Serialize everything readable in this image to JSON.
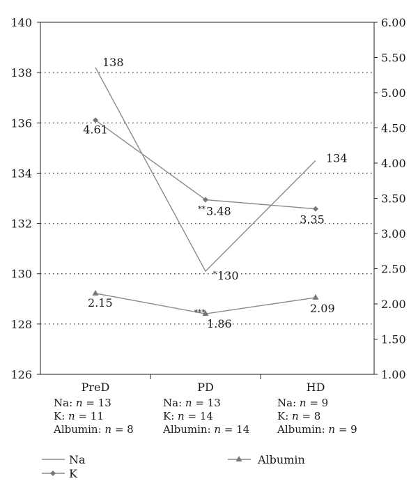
{
  "chart_data": {
    "type": "line",
    "categories": [
      "PreD",
      "PD",
      "HD"
    ],
    "left_axis": {
      "ylim": [
        126,
        140
      ],
      "ticks": [
        "126",
        "128",
        "130",
        "132",
        "134",
        "136",
        "138",
        "140"
      ]
    },
    "right_axis": {
      "ylim": [
        1.0,
        6.0
      ],
      "ticks": [
        "1.00",
        "1.50",
        "2.00",
        "2.50",
        "3.00",
        "3.50",
        "4.00",
        "4.50",
        "5.00",
        "5.50",
        "6.00"
      ]
    },
    "grid": "dotted horizontal at 128–138",
    "series": [
      {
        "name": "Na",
        "axis": "left",
        "marker": "none",
        "values": [
          138.2,
          130.1,
          134.5
        ],
        "labels": [
          "138",
          "130",
          "134"
        ],
        "stars": [
          "",
          "*",
          ""
        ]
      },
      {
        "name": "K",
        "axis": "right",
        "marker": "diamond",
        "values": [
          4.61,
          3.48,
          3.35
        ],
        "labels": [
          "4.61",
          "3.48",
          "3.35"
        ],
        "stars": [
          "",
          "**",
          ""
        ]
      },
      {
        "name": "Albumin",
        "axis": "right",
        "marker": "triangle",
        "values": [
          2.15,
          1.86,
          2.09
        ],
        "labels": [
          "2.15",
          "1.86",
          "2.09"
        ],
        "stars": [
          "",
          "***",
          ""
        ]
      }
    ],
    "sample_sizes": [
      [
        "Na: n = 13",
        "K: n = 11",
        "Albumin: n = 8"
      ],
      [
        "Na: n = 13",
        "K: n = 14",
        "Albumin: n = 14"
      ],
      [
        "Na: n = 9",
        "K: n = 8",
        "Albumin: n = 9"
      ]
    ],
    "legend": {
      "placement": "bottom",
      "items": [
        "Na",
        "K",
        "Albumin"
      ]
    }
  }
}
